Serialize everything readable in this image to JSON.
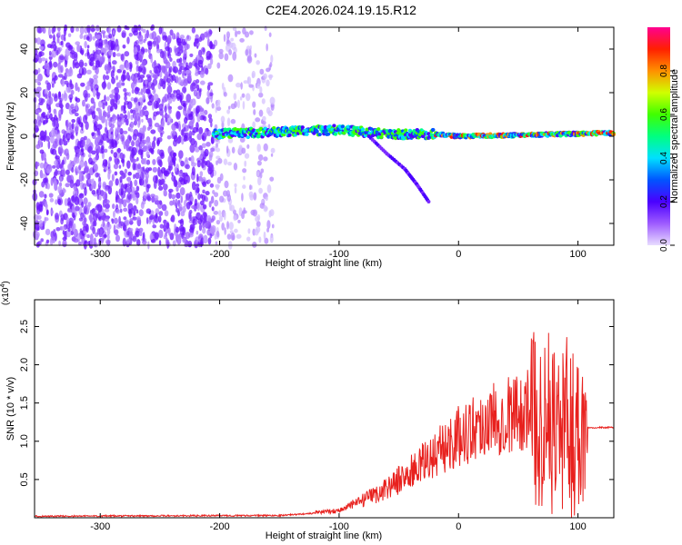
{
  "title": "C2E4.2026.024.19.15.R12",
  "colors": {
    "signal_line": "#e8211e",
    "spec_dot": "#7b2cff",
    "frame": "#000000"
  },
  "chart_data": [
    {
      "type": "heatmap",
      "xlabel": "Height of straight line (km)",
      "ylabel": "Frequency (Hz)",
      "xlim": [
        -355,
        130
      ],
      "ylim": [
        -50,
        50
      ],
      "xticks": [
        -300,
        -200,
        -100,
        0,
        100
      ],
      "yticks": [
        -40,
        -20,
        0,
        20,
        40
      ],
      "colorbar": {
        "label": "Normalized spectral amplitude",
        "range": [
          0.0,
          1.0
        ],
        "ticks": [
          "0.0",
          "0.2",
          "0.4",
          "0.6",
          "0.8"
        ],
        "colormap": "rainbow"
      },
      "ridge": [
        {
          "x": -205,
          "y": 1
        },
        {
          "x": -150,
          "y": 2
        },
        {
          "x": -100,
          "y": 3
        },
        {
          "x": -60,
          "y": 1
        },
        {
          "x": -20,
          "y": 1
        },
        {
          "x": 0,
          "y": 0
        },
        {
          "x": 50,
          "y": 0.5
        },
        {
          "x": 90,
          "y": 1
        },
        {
          "x": 130,
          "y": 1.5
        }
      ],
      "branch": [
        {
          "x": -75,
          "y": 0
        },
        {
          "x": -60,
          "y": -8
        },
        {
          "x": -45,
          "y": -15
        },
        {
          "x": -35,
          "y": -22
        },
        {
          "x": -25,
          "y": -30
        }
      ]
    },
    {
      "type": "line",
      "xlabel": "Height of straight line (km)",
      "ylabel": "SNR (10 * v/v)",
      "y_multiplier": "(x10",
      "y_exponent": "4",
      "xlim": [
        -355,
        130
      ],
      "ylim": [
        0,
        2.85
      ],
      "xticks": [
        -300,
        -200,
        -100,
        0,
        100
      ],
      "yticks": [
        "0.5",
        "1.0",
        "1.5",
        "2.0",
        "2.5"
      ],
      "envelope": [
        {
          "x": -355,
          "y": 0.02
        },
        {
          "x": -150,
          "y": 0.03
        },
        {
          "x": -100,
          "y": 0.08
        },
        {
          "x": -70,
          "y": 0.25
        },
        {
          "x": -40,
          "y": 0.5
        },
        {
          "x": -20,
          "y": 0.7
        },
        {
          "x": 0,
          "y": 0.9
        },
        {
          "x": 20,
          "y": 1.05
        },
        {
          "x": 40,
          "y": 1.15
        },
        {
          "x": 60,
          "y": 1.2
        },
        {
          "x": 80,
          "y": 1.1
        },
        {
          "x": 100,
          "y": 1.0
        },
        {
          "x": 108,
          "y": 1.18
        },
        {
          "x": 130,
          "y": 1.18
        }
      ]
    }
  ]
}
